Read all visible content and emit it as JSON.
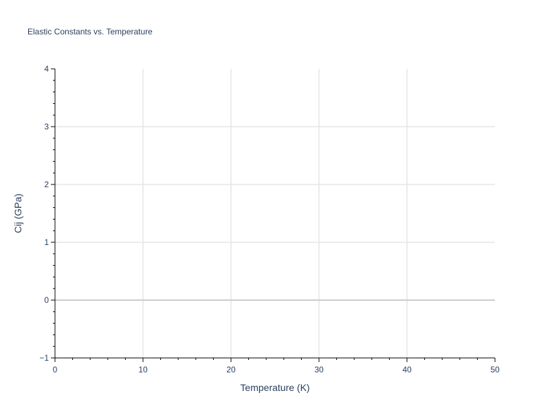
{
  "chart_data": {
    "type": "scatter",
    "title": "Elastic Constants vs. Temperature",
    "xlabel": "Temperature (K)",
    "ylabel": "Cij (GPa)",
    "xlim": [
      0,
      50
    ],
    "ylim": [
      -1,
      4
    ],
    "xticks": [
      "0",
      "10",
      "20",
      "30",
      "40",
      "50"
    ],
    "yticks": [
      "−1",
      "0",
      "1",
      "2",
      "3",
      "4"
    ],
    "grid": true,
    "series": [],
    "colors": {
      "text": "#2a3f5f",
      "grid": "#e5e5e5",
      "zeroline": "#cccccc",
      "axis": "#000000"
    }
  }
}
